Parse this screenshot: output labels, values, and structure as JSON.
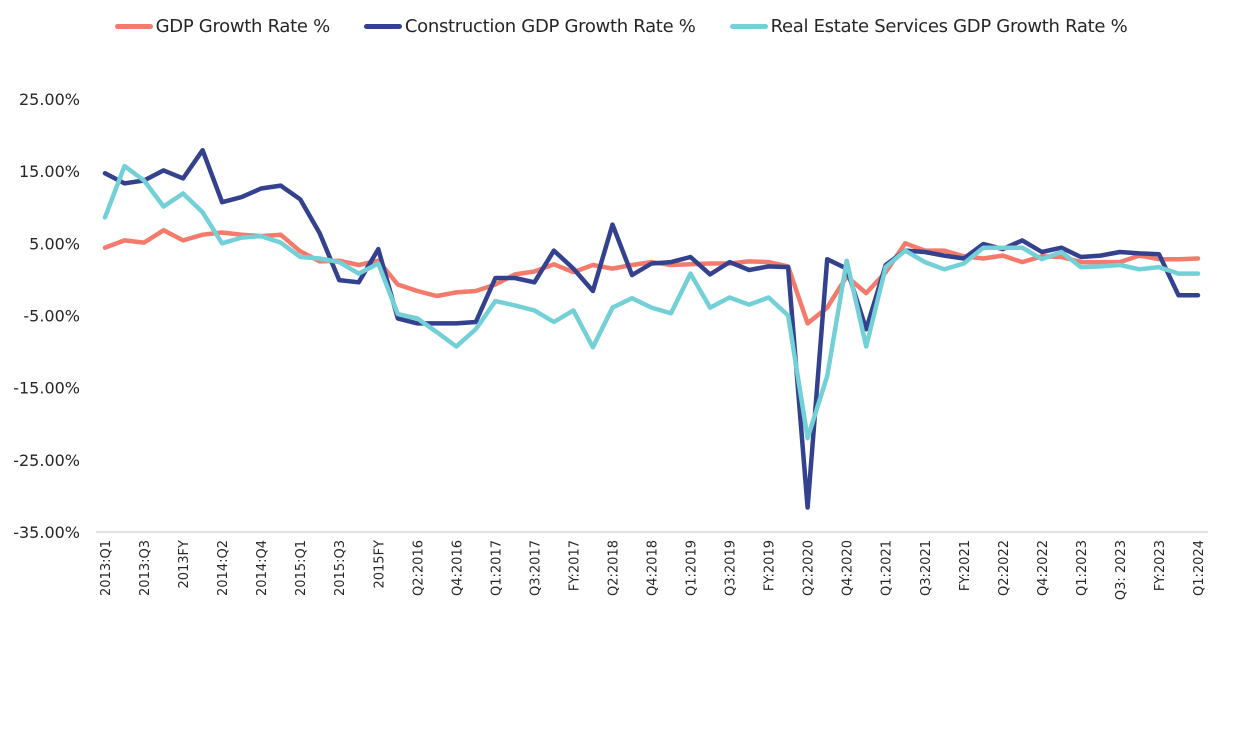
{
  "chart_data": {
    "type": "line",
    "title": "",
    "xlabel": "",
    "ylabel": "",
    "ylim": [
      -35,
      25
    ],
    "yticks": [
      25,
      15,
      5,
      -5,
      -15,
      -25,
      -35
    ],
    "ytick_labels": [
      "25.00%",
      "15.00%",
      "5.00%",
      "-5.00%",
      "-15.00%",
      "-25.00%",
      "-35.00%"
    ],
    "grid": false,
    "legend_position": "top-center",
    "categories": [
      "2013:Q1",
      "",
      "2013:Q3",
      "",
      "2013FY",
      "",
      "2014:Q2",
      "",
      "2014:Q4",
      "",
      "2015:Q1",
      "",
      "2015:Q3",
      "",
      "2015FY",
      "",
      "Q2:2016",
      "",
      "Q4:2016",
      "",
      "Q1:2017",
      "",
      "Q3:2017",
      "",
      "FY:2017",
      "",
      "Q2:2018",
      "",
      "Q4:2018",
      "",
      "Q1:2019",
      "",
      "Q3:2019",
      "",
      "FY:2019",
      "",
      "Q2:2020",
      "",
      "Q4:2020",
      "",
      "Q1:2021",
      "",
      "Q3:2021",
      "",
      "FY:2021",
      "",
      "Q2:2022",
      "",
      "Q4:2022",
      "",
      "Q1:2023",
      "",
      "Q3: 2023",
      "",
      "FY:2023",
      "",
      "Q1:2024"
    ],
    "series": [
      {
        "name": "GDP Growth Rate %",
        "color": "#F47B6B",
        "values": [
          4.4,
          5.4,
          5.1,
          6.8,
          5.4,
          6.2,
          6.5,
          6.2,
          6.0,
          6.2,
          3.9,
          2.5,
          2.6,
          2.0,
          2.6,
          -0.7,
          -1.6,
          -2.3,
          -1.8,
          -1.6,
          -0.7,
          0.7,
          1.1,
          2.1,
          1.0,
          2.0,
          1.5,
          2.0,
          2.4,
          2.0,
          2.1,
          2.2,
          2.2,
          2.5,
          2.4,
          1.8,
          -6.1,
          -3.9,
          0.4,
          -1.9,
          1.0,
          5.0,
          4.0,
          4.0,
          3.2,
          2.9,
          3.3,
          2.4,
          3.2,
          3.1,
          2.4,
          2.4,
          2.4,
          3.3,
          2.8,
          2.8,
          2.9
        ]
      },
      {
        "name": "Construction GDP Growth Rate %",
        "color": "#33418F",
        "values": [
          14.7,
          13.3,
          13.7,
          15.1,
          14.0,
          17.9,
          10.7,
          11.4,
          12.6,
          13.0,
          11.1,
          6.4,
          -0.1,
          -0.4,
          4.2,
          -5.4,
          -6.1,
          -6.1,
          -6.1,
          -5.9,
          0.2,
          0.2,
          -0.4,
          4.0,
          1.5,
          -1.6,
          7.6,
          0.6,
          2.2,
          2.4,
          3.1,
          0.7,
          2.4,
          1.3,
          1.8,
          1.7,
          -31.6,
          2.8,
          1.5,
          -6.9,
          2.0,
          4.0,
          3.8,
          3.3,
          2.9,
          4.9,
          4.2,
          5.4,
          3.8,
          4.4,
          3.1,
          3.3,
          3.8,
          3.6,
          3.5,
          -2.2,
          -2.2
        ]
      },
      {
        "name": "Real Estate Services GDP Growth Rate %",
        "color": "#72D0D6",
        "values": [
          8.6,
          15.7,
          13.7,
          10.1,
          11.9,
          9.3,
          5.0,
          5.8,
          6.0,
          5.1,
          3.1,
          2.9,
          2.4,
          0.8,
          2.2,
          -4.8,
          -5.4,
          -7.3,
          -9.3,
          -6.9,
          -3.0,
          -3.6,
          -4.3,
          -5.9,
          -4.3,
          -9.4,
          -3.9,
          -2.6,
          -3.9,
          -4.7,
          0.8,
          -3.9,
          -2.5,
          -3.5,
          -2.5,
          -5.0,
          -22.0,
          -13.4,
          2.6,
          -9.3,
          1.7,
          4.0,
          2.4,
          1.4,
          2.2,
          4.4,
          4.4,
          4.4,
          2.8,
          3.8,
          1.7,
          1.8,
          2.0,
          1.4,
          1.7,
          0.8,
          0.8
        ]
      }
    ]
  },
  "axis": {
    "line_color": "#D9D9D9"
  }
}
